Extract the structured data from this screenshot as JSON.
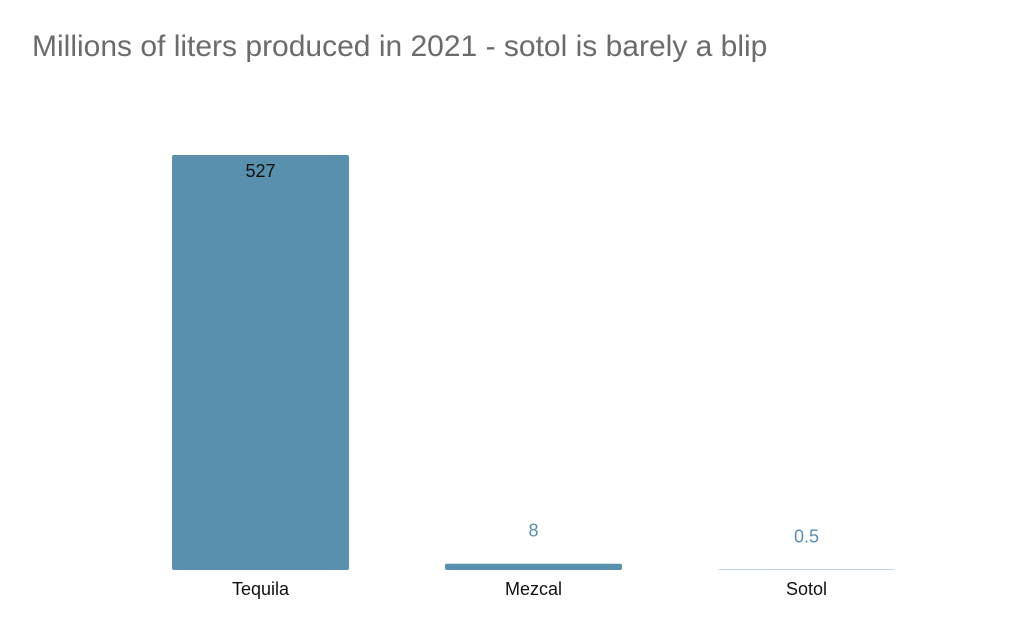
{
  "chart_data": {
    "type": "bar",
    "title": "Millions of liters produced in 2021 - sotol is barely a blip",
    "categories": [
      "Tequila",
      "Mezcal",
      "Sotol"
    ],
    "values": [
      527,
      8,
      0.5
    ],
    "color": "#5990ad"
  }
}
